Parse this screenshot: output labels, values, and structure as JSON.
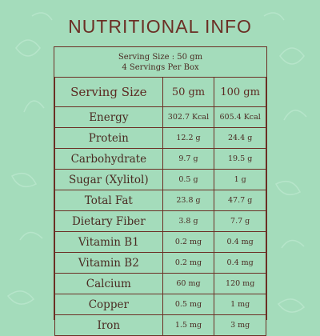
{
  "title": "NUTRITIONAL INFO",
  "serving_info": {
    "line1": "Serving Size :  50 gm",
    "line2": "4 Servings Per Box"
  },
  "table": {
    "headers": [
      "Serving Size",
      "50 gm",
      "100 gm"
    ],
    "rows": [
      {
        "nutrient": "Energy",
        "v50": "302.7 Kcal",
        "v100": "605.4 Kcal"
      },
      {
        "nutrient": "Protein",
        "v50": "12.2 g",
        "v100": "24.4 g"
      },
      {
        "nutrient": "Carbohydrate",
        "v50": "9.7 g",
        "v100": "19.5 g"
      },
      {
        "nutrient": "Sugar  (Xylitol)",
        "v50": "0.5 g",
        "v100": "1 g"
      },
      {
        "nutrient": "Total Fat",
        "v50": "23.8 g",
        "v100": "47.7 g"
      },
      {
        "nutrient": "Dietary Fiber",
        "v50": "3.8 g",
        "v100": "7.7 g"
      },
      {
        "nutrient": "Vitamin B1",
        "v50": "0.2 mg",
        "v100": "0.4 mg"
      },
      {
        "nutrient": "Vitamin B2",
        "v50": "0.2 mg",
        "v100": "0.4 mg"
      },
      {
        "nutrient": "Calcium",
        "v50": "60 mg",
        "v100": "120 mg"
      },
      {
        "nutrient": "Copper",
        "v50": "0.5 mg",
        "v100": "1 mg"
      },
      {
        "nutrient": "Iron",
        "v50": "1.5 mg",
        "v100": "3 mg"
      }
    ]
  },
  "colors": {
    "background": "#a4dcbb",
    "text": "#6b2f25",
    "border": "#6b2f25"
  }
}
